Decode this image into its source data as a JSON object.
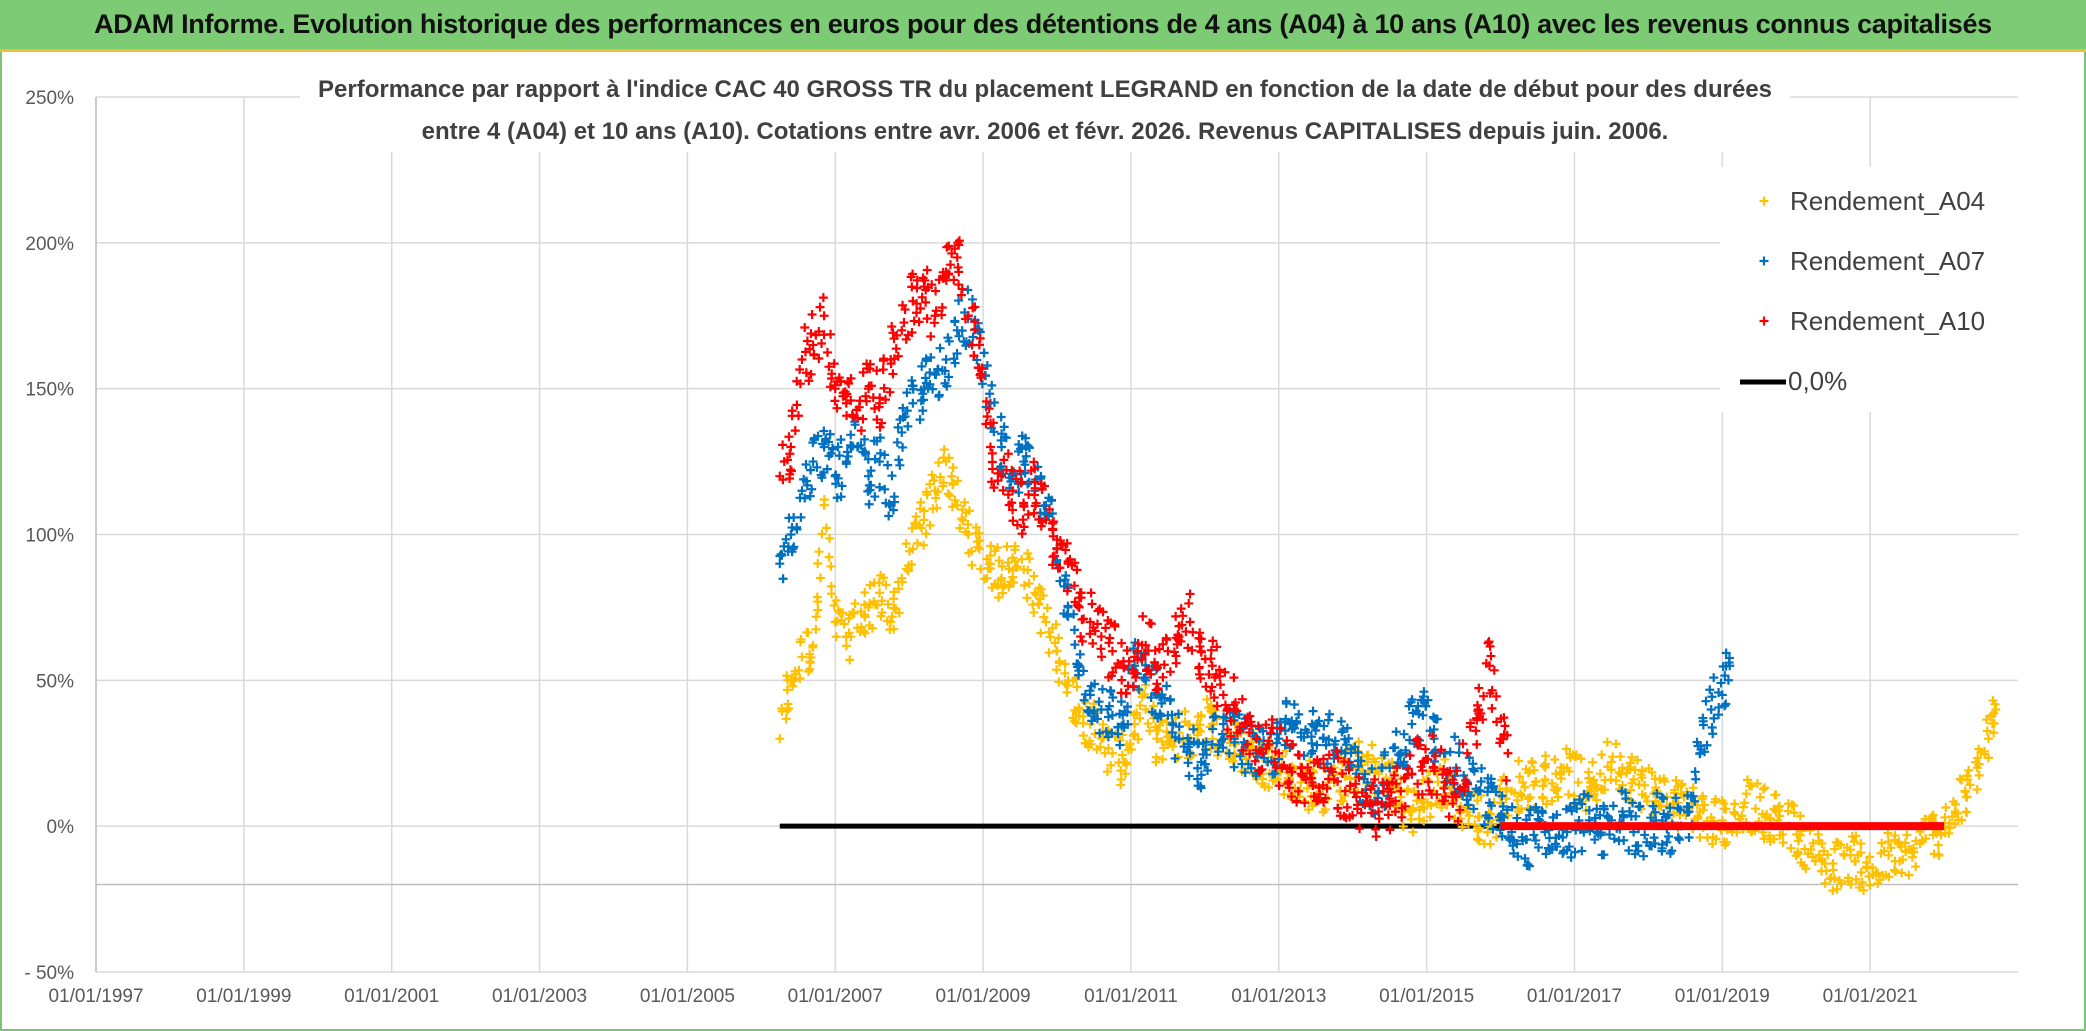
{
  "header": {
    "title": "ADAM Informe. Evolution historique des performances en euros pour des détentions de 4 ans (A04) à 10 ans (A10) avec les revenus connus capitalisés"
  },
  "chart_data": {
    "type": "scatter",
    "title_line1": "Performance par rapport à l'indice CAC 40 GROSS TR  du placement LEGRAND en fonction de la date de début pour des durées",
    "title_line2": "entre 4 (A04) et 10 ans (A10). Cotations entre avr. 2006 et févr. 2026. Revenus CAPITALISES depuis juin. 2006.",
    "xlabel": "",
    "ylabel": "",
    "x_ticks": [
      "01/01/1997",
      "01/01/1999",
      "01/01/2001",
      "01/01/2003",
      "01/01/2005",
      "01/01/2007",
      "01/01/2009",
      "01/01/2011",
      "01/01/2013",
      "01/01/2015",
      "01/01/2017",
      "01/01/2019",
      "01/01/2021"
    ],
    "xlim": [
      1997.0,
      2023.0
    ],
    "y_ticks": [
      250,
      200,
      150,
      100,
      50,
      0,
      -50
    ],
    "y_tick_labels": [
      "250%",
      "200%",
      "150%",
      "100%",
      "50%",
      "0%",
      "- 50%"
    ],
    "ylim": [
      -50,
      250
    ],
    "grid": true,
    "legend_position": "top-right",
    "colors": {
      "A04": "#ffc000",
      "A07": "#0070c0",
      "A10": "#ff0000",
      "zero": "#000000"
    },
    "series": [
      {
        "name": "Rendement_A04",
        "key": "A04",
        "x": [
          2006.25,
          2006.4,
          2006.55,
          2006.7,
          2006.85,
          2007.0,
          2007.15,
          2007.3,
          2007.45,
          2007.6,
          2007.75,
          2007.9,
          2008.05,
          2008.2,
          2008.35,
          2008.5,
          2008.65,
          2008.8,
          2008.95,
          2009.1,
          2009.25,
          2009.4,
          2009.55,
          2009.7,
          2009.85,
          2010.0,
          2010.15,
          2010.3,
          2010.45,
          2010.6,
          2010.75,
          2010.9,
          2011.05,
          2011.2,
          2011.35,
          2011.5,
          2011.65,
          2011.8,
          2011.95,
          2012.1,
          2012.25,
          2012.4,
          2012.55,
          2012.7,
          2012.85,
          2013.0,
          2013.15,
          2013.3,
          2013.45,
          2013.6,
          2013.75,
          2013.9,
          2014.05,
          2014.2,
          2014.35,
          2014.5,
          2014.65,
          2014.8,
          2014.95,
          2015.1,
          2015.25,
          2015.4,
          2015.55,
          2015.7,
          2015.85,
          2016.0,
          2016.15,
          2016.3,
          2016.45,
          2016.6,
          2016.75,
          2016.9,
          2017.05,
          2017.2,
          2017.35,
          2017.5,
          2017.65,
          2017.8,
          2017.95,
          2018.1,
          2018.25,
          2018.4,
          2018.55,
          2018.7,
          2018.85,
          2019.0,
          2019.15,
          2019.3,
          2019.45,
          2019.6,
          2019.75,
          2019.9,
          2020.05,
          2020.2,
          2020.35,
          2020.5,
          2020.65,
          2020.8,
          2020.95,
          2021.1,
          2021.25,
          2021.4,
          2021.55,
          2021.7,
          2021.85,
          2022.0,
          2022.15,
          2022.3,
          2022.45,
          2022.6,
          2022.7
        ],
        "y": [
          30,
          50,
          58,
          62,
          110,
          70,
          65,
          68,
          75,
          80,
          70,
          85,
          95,
          105,
          115,
          125,
          110,
          100,
          95,
          90,
          85,
          92,
          88,
          80,
          70,
          60,
          50,
          40,
          35,
          30,
          25,
          22,
          35,
          40,
          30,
          28,
          32,
          30,
          38,
          35,
          30,
          28,
          26,
          24,
          22,
          20,
          18,
          15,
          14,
          13,
          15,
          17,
          20,
          22,
          18,
          15,
          10,
          5,
          8,
          12,
          15,
          10,
          5,
          3,
          0,
          8,
          12,
          15,
          14,
          16,
          18,
          20,
          15,
          12,
          18,
          22,
          20,
          16,
          14,
          12,
          10,
          8,
          6,
          5,
          3,
          2,
          0,
          8,
          6,
          4,
          2,
          0,
          -3,
          -8,
          -12,
          -15,
          -10,
          -12,
          -14,
          -16,
          -10,
          -12,
          -8,
          -5,
          -3,
          0,
          5,
          10,
          20,
          30,
          40
        ],
        "spread": 9
      },
      {
        "name": "Rendement_A07",
        "key": "A07",
        "x": [
          2006.25,
          2006.4,
          2006.55,
          2006.7,
          2006.85,
          2007.0,
          2007.15,
          2007.3,
          2007.45,
          2007.6,
          2007.75,
          2007.9,
          2008.05,
          2008.2,
          2008.35,
          2008.5,
          2008.65,
          2008.8,
          2008.95,
          2009.1,
          2009.25,
          2009.4,
          2009.55,
          2009.7,
          2009.85,
          2010.0,
          2010.15,
          2010.3,
          2010.45,
          2010.6,
          2010.75,
          2010.9,
          2011.05,
          2011.2,
          2011.35,
          2011.5,
          2011.65,
          2011.8,
          2011.95,
          2012.1,
          2012.25,
          2012.4,
          2012.55,
          2012.7,
          2012.85,
          2013.0,
          2013.15,
          2013.3,
          2013.45,
          2013.6,
          2013.75,
          2013.9,
          2014.05,
          2014.2,
          2014.35,
          2014.5,
          2014.65,
          2014.8,
          2014.95,
          2015.1,
          2015.25,
          2015.4,
          2015.55,
          2015.7,
          2015.85,
          2016.0,
          2016.15,
          2016.3,
          2016.45,
          2016.6,
          2016.75,
          2016.9,
          2017.05,
          2017.2,
          2017.35,
          2017.5,
          2017.65,
          2017.8,
          2017.95,
          2018.1,
          2018.25,
          2018.4,
          2018.55,
          2018.7,
          2018.85,
          2019.0,
          2019.1
        ],
        "y": [
          90,
          100,
          115,
          125,
          130,
          120,
          125,
          130,
          120,
          125,
          110,
          135,
          145,
          150,
          155,
          160,
          170,
          175,
          165,
          145,
          130,
          120,
          125,
          115,
          110,
          95,
          75,
          55,
          45,
          40,
          38,
          35,
          55,
          50,
          45,
          38,
          30,
          25,
          22,
          28,
          35,
          30,
          28,
          25,
          22,
          30,
          35,
          32,
          35,
          30,
          28,
          25,
          18,
          15,
          12,
          20,
          25,
          35,
          38,
          30,
          25,
          20,
          15,
          12,
          8,
          2,
          -2,
          -5,
          -3,
          -2,
          -4,
          -2,
          0,
          2,
          -3,
          2,
          5,
          -2,
          -3,
          2,
          -1,
          0,
          5,
          25,
          40,
          45,
          55
        ],
        "spread": 10
      },
      {
        "name": "Rendement_A10",
        "key": "A10",
        "x": [
          2006.25,
          2006.4,
          2006.55,
          2006.7,
          2006.85,
          2007.0,
          2007.15,
          2007.3,
          2007.45,
          2007.6,
          2007.75,
          2007.9,
          2008.05,
          2008.2,
          2008.35,
          2008.5,
          2008.65,
          2008.8,
          2008.95,
          2009.1,
          2009.25,
          2009.4,
          2009.55,
          2009.7,
          2009.85,
          2010.0,
          2010.15,
          2010.3,
          2010.45,
          2010.6,
          2010.75,
          2010.9,
          2011.05,
          2011.2,
          2011.35,
          2011.5,
          2011.65,
          2011.8,
          2011.95,
          2012.1,
          2012.25,
          2012.4,
          2012.55,
          2012.7,
          2012.85,
          2013.0,
          2013.15,
          2013.3,
          2013.45,
          2013.6,
          2013.75,
          2013.9,
          2014.05,
          2014.2,
          2014.35,
          2014.5,
          2014.65,
          2014.8,
          2014.95,
          2015.1,
          2015.25,
          2015.4,
          2015.55,
          2015.7,
          2015.85,
          2016.0,
          2016.1
        ],
        "y": [
          120,
          130,
          160,
          165,
          175,
          150,
          145,
          140,
          150,
          145,
          160,
          170,
          180,
          185,
          175,
          190,
          195,
          175,
          165,
          130,
          120,
          115,
          110,
          118,
          105,
          95,
          90,
          75,
          70,
          65,
          60,
          55,
          58,
          62,
          55,
          60,
          65,
          70,
          60,
          55,
          45,
          40,
          35,
          30,
          28,
          25,
          20,
          18,
          15,
          14,
          16,
          12,
          10,
          8,
          5,
          8,
          12,
          18,
          22,
          20,
          15,
          10,
          25,
          40,
          55,
          30,
          25
        ],
        "spread": 11
      },
      {
        "name": "0,0%",
        "key": "zero",
        "x": [
          2006.25,
          2022.0
        ],
        "y": [
          0,
          0
        ]
      }
    ],
    "red_flat_segment": {
      "x": [
        2016.0,
        2022.0
      ],
      "y": 0
    },
    "legend": [
      "Rendement_A04",
      "Rendement_A07",
      "Rendement_A10",
      "0,0%"
    ]
  }
}
